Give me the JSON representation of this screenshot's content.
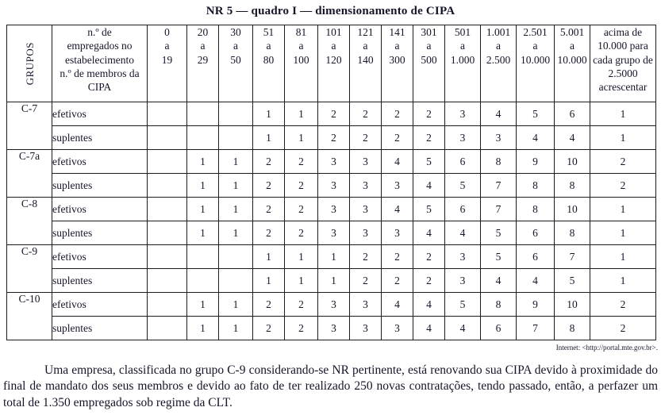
{
  "title": "NR 5 — quadro I — dimensionamento de CIPA",
  "colors": {
    "text": "#15152a",
    "border": "#1c1c1c",
    "background": "#ffffff"
  },
  "table": {
    "corner_header": "GRUPOS",
    "employees_header": "n.º de\nempregados no\nestabelecimento\nn.º de membros da\nCIPA",
    "range_headers": [
      "0\na\n19",
      "20\na\n29",
      "30\na\n50",
      "51\na\n80",
      "81\na\n100",
      "101\na\n120",
      "121\na\n140",
      "141\na\n300",
      "301\na\n500",
      "501\na\n1.000",
      "1.001\na\n2.500",
      "2.501\na\n10.000",
      "5.001\na\n10.000",
      "acima de\n10.000 para\ncada grupo de\n2.5000\nacrescentar"
    ],
    "groups": [
      {
        "label": "C-7",
        "rows": [
          {
            "tipo": "efetivos",
            "values": [
              "",
              "",
              "",
              "1",
              "1",
              "2",
              "2",
              "2",
              "2",
              "3",
              "4",
              "5",
              "6",
              "1"
            ]
          },
          {
            "tipo": "suplentes",
            "values": [
              "",
              "",
              "",
              "1",
              "1",
              "2",
              "2",
              "2",
              "2",
              "3",
              "3",
              "4",
              "4",
              "1"
            ]
          }
        ]
      },
      {
        "label": "C-7a",
        "rows": [
          {
            "tipo": "efetivos",
            "values": [
              "",
              "1",
              "1",
              "2",
              "2",
              "3",
              "3",
              "4",
              "5",
              "6",
              "8",
              "9",
              "10",
              "2"
            ]
          },
          {
            "tipo": "suplentes",
            "values": [
              "",
              "1",
              "1",
              "2",
              "2",
              "3",
              "3",
              "3",
              "4",
              "5",
              "7",
              "8",
              "8",
              "2"
            ]
          }
        ]
      },
      {
        "label": "C-8",
        "rows": [
          {
            "tipo": "efetivos",
            "values": [
              "",
              "1",
              "1",
              "2",
              "2",
              "3",
              "3",
              "4",
              "5",
              "6",
              "7",
              "8",
              "10",
              "1"
            ]
          },
          {
            "tipo": "suplentes",
            "values": [
              "",
              "1",
              "1",
              "2",
              "2",
              "3",
              "3",
              "3",
              "4",
              "4",
              "5",
              "6",
              "8",
              "1"
            ]
          }
        ]
      },
      {
        "label": "C-9",
        "rows": [
          {
            "tipo": "efetivos",
            "values": [
              "",
              "",
              "",
              "1",
              "1",
              "1",
              "2",
              "2",
              "2",
              "3",
              "5",
              "6",
              "7",
              "1"
            ]
          },
          {
            "tipo": "suplentes",
            "values": [
              "",
              "",
              "",
              "1",
              "1",
              "1",
              "2",
              "2",
              "2",
              "3",
              "4",
              "4",
              "5",
              "1"
            ]
          }
        ]
      },
      {
        "label": "C-10",
        "rows": [
          {
            "tipo": "efetivos",
            "values": [
              "",
              "1",
              "1",
              "2",
              "2",
              "3",
              "3",
              "4",
              "4",
              "5",
              "8",
              "9",
              "10",
              "2"
            ]
          },
          {
            "tipo": "suplentes",
            "values": [
              "",
              "1",
              "1",
              "2",
              "2",
              "3",
              "3",
              "3",
              "4",
              "4",
              "6",
              "7",
              "8",
              "2"
            ]
          }
        ]
      }
    ]
  },
  "source": "Internet: <http://portal.mte.gov.br>.",
  "paragraph": "Uma empresa, classificada no grupo C-9 considerando-se NR pertinente, está renovando sua CIPA devido à proximidade do final de mandato dos seus membros e devido ao fato de ter realizado 250 novas contratações, tendo passado, então, a perfazer um total de 1.350 empregados sob regime da CLT."
}
